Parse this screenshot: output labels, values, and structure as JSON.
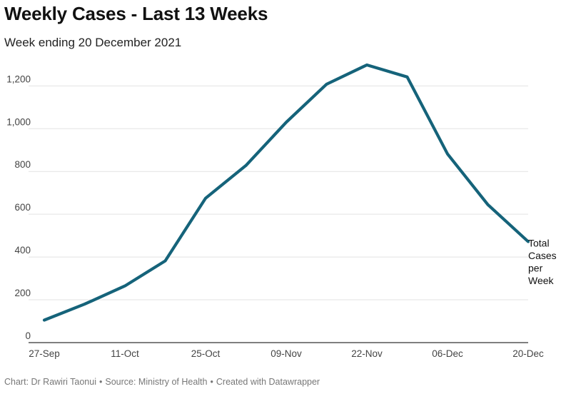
{
  "title": "Weekly Cases - Last 13 Weeks",
  "subtitle": "Week ending 20 December 2021",
  "footer": {
    "chart_by": "Chart: Dr Rawiri Taonui",
    "source": "Source: Ministry of Health",
    "created": "Created with Datawrapper",
    "separator": "•"
  },
  "colors": {
    "line": "#15637a",
    "grid": "#e3e3e3",
    "axis": "#333333"
  },
  "chart_data": {
    "type": "line",
    "title": "Weekly Cases - Last 13 Weeks",
    "subtitle": "Week ending 20 December 2021",
    "x": [
      "27-Sep",
      "04-Oct",
      "11-Oct",
      "18-Oct",
      "25-Oct",
      "01-Nov",
      "09-Nov",
      "15-Nov",
      "22-Nov",
      "29-Nov",
      "06-Dec",
      "13-Dec",
      "20-Dec"
    ],
    "x_tick_labels": [
      "27-Sep",
      "11-Oct",
      "25-Oct",
      "09-Nov",
      "22-Nov",
      "06-Dec",
      "20-Dec"
    ],
    "series": [
      {
        "name": "Total Cases per Week",
        "label_lines": [
          "Total",
          "Cases",
          "per",
          "Week"
        ],
        "values": [
          105,
          180,
          265,
          382,
          675,
          828,
          1030,
          1208,
          1298,
          1242,
          882,
          645,
          472
        ]
      }
    ],
    "y_ticks": [
      0,
      200,
      400,
      600,
      800,
      "1,000",
      "1,200"
    ],
    "ylim": [
      0,
      1300
    ],
    "grid": true,
    "legend": "none (direct label at end of line)"
  }
}
